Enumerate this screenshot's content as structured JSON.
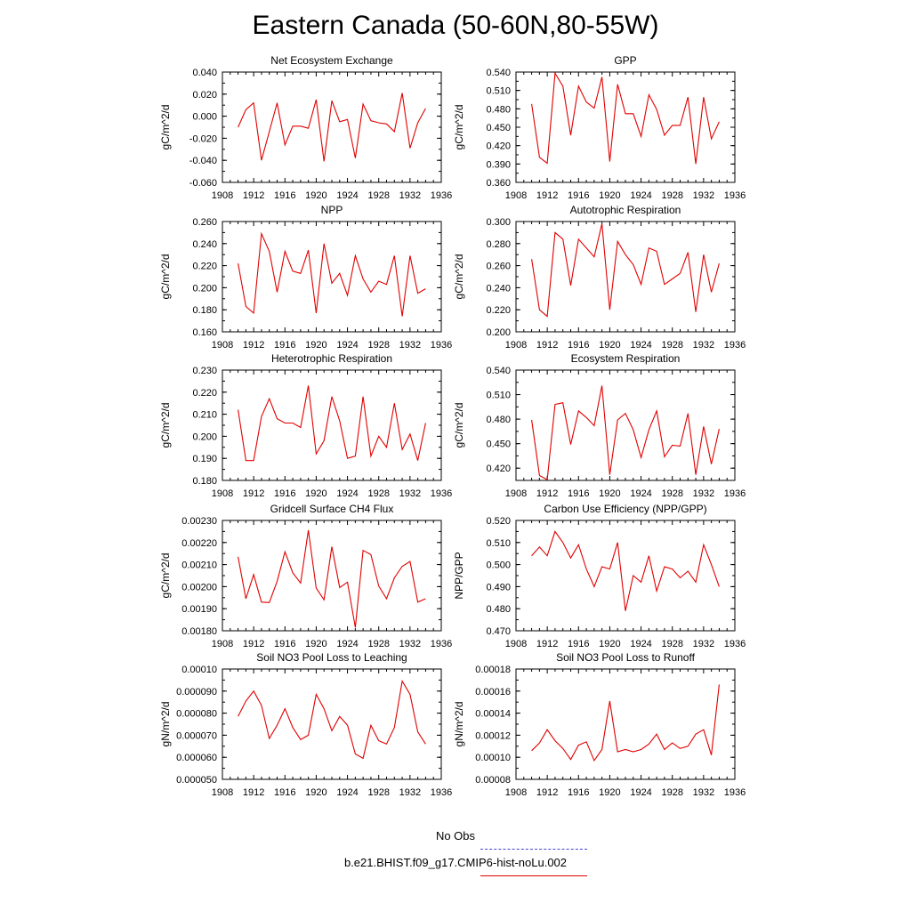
{
  "title": "Eastern Canada (50-60N,80-55W)",
  "legend": {
    "obs_label": "No Obs",
    "obs_color": "#4444cc",
    "model_label": "b.e21.BHIST.f09_g17.CMIP6-hist-noLu.002",
    "model_color": "#e00000"
  },
  "chart_data": [
    {
      "type": "line",
      "title": "Net Ecosystem Exchange",
      "ylabel": "gC/m^2/d",
      "xlim": [
        1908,
        1936
      ],
      "ylim": [
        -0.06,
        0.04
      ],
      "xticks": [
        "1908",
        "1912",
        "1916",
        "1920",
        "1924",
        "1928",
        "1932",
        "1936"
      ],
      "yticks": [
        "-0.060",
        "-0.040",
        "-0.020",
        "0.000",
        "0.020",
        "0.040"
      ],
      "series": [
        {
          "x": [
            1910,
            1911,
            1912,
            1913,
            1914,
            1915,
            1916,
            1917,
            1918,
            1919,
            1920,
            1921,
            1922,
            1923,
            1924,
            1925,
            1926,
            1927,
            1928,
            1929,
            1930,
            1931,
            1932,
            1933,
            1934
          ],
          "y": [
            -0.01,
            0.006,
            0.012,
            -0.04,
            -0.014,
            0.012,
            -0.026,
            -0.009,
            -0.009,
            -0.011,
            0.015,
            -0.041,
            0.014,
            -0.005,
            -0.003,
            -0.038,
            0.011,
            -0.004,
            -0.006,
            -0.007,
            -0.014,
            0.021,
            -0.029,
            -0.006,
            0.007
          ]
        }
      ]
    },
    {
      "type": "line",
      "title": "GPP",
      "ylabel": "gC/m^2/d",
      "xlim": [
        1908,
        1936
      ],
      "ylim": [
        0.36,
        0.54
      ],
      "xticks": [
        "1908",
        "1912",
        "1916",
        "1920",
        "1924",
        "1928",
        "1932",
        "1936"
      ],
      "yticks": [
        "0.360",
        "0.390",
        "0.420",
        "0.450",
        "0.480",
        "0.510",
        "0.540"
      ],
      "series": [
        {
          "x": [
            1910,
            1911,
            1912,
            1913,
            1914,
            1915,
            1916,
            1917,
            1918,
            1919,
            1920,
            1921,
            1922,
            1923,
            1924,
            1925,
            1926,
            1927,
            1928,
            1929,
            1930,
            1931,
            1932,
            1933,
            1934
          ],
          "y": [
            0.488,
            0.401,
            0.391,
            0.538,
            0.517,
            0.437,
            0.517,
            0.491,
            0.481,
            0.532,
            0.394,
            0.52,
            0.472,
            0.472,
            0.435,
            0.503,
            0.479,
            0.437,
            0.453,
            0.453,
            0.499,
            0.39,
            0.499,
            0.431,
            0.459
          ]
        }
      ]
    },
    {
      "type": "line",
      "title": "NPP",
      "ylabel": "gC/m^2/d",
      "xlim": [
        1908,
        1936
      ],
      "ylim": [
        0.16,
        0.26
      ],
      "xticks": [
        "1908",
        "1912",
        "1916",
        "1920",
        "1924",
        "1928",
        "1932",
        "1936"
      ],
      "yticks": [
        "0.160",
        "0.180",
        "0.200",
        "0.220",
        "0.240",
        "0.260"
      ],
      "series": [
        {
          "x": [
            1910,
            1911,
            1912,
            1913,
            1914,
            1915,
            1916,
            1917,
            1918,
            1919,
            1920,
            1921,
            1922,
            1923,
            1924,
            1925,
            1926,
            1927,
            1928,
            1929,
            1930,
            1931,
            1932,
            1933,
            1934
          ],
          "y": [
            0.222,
            0.183,
            0.177,
            0.249,
            0.233,
            0.196,
            0.233,
            0.215,
            0.213,
            0.234,
            0.177,
            0.24,
            0.204,
            0.213,
            0.193,
            0.229,
            0.208,
            0.196,
            0.206,
            0.203,
            0.229,
            0.174,
            0.229,
            0.195,
            0.199
          ]
        }
      ]
    },
    {
      "type": "line",
      "title": "Autotrophic Respiration",
      "ylabel": "gC/m^2/d",
      "xlim": [
        1908,
        1936
      ],
      "ylim": [
        0.2,
        0.3
      ],
      "xticks": [
        "1908",
        "1912",
        "1916",
        "1920",
        "1924",
        "1928",
        "1932",
        "1936"
      ],
      "yticks": [
        "0.200",
        "0.220",
        "0.240",
        "0.260",
        "0.280",
        "0.300"
      ],
      "series": [
        {
          "x": [
            1910,
            1911,
            1912,
            1913,
            1914,
            1915,
            1916,
            1917,
            1918,
            1919,
            1920,
            1921,
            1922,
            1923,
            1924,
            1925,
            1926,
            1927,
            1928,
            1929,
            1930,
            1931,
            1932,
            1933,
            1934
          ],
          "y": [
            0.266,
            0.22,
            0.214,
            0.29,
            0.284,
            0.242,
            0.284,
            0.276,
            0.268,
            0.298,
            0.22,
            0.282,
            0.27,
            0.261,
            0.243,
            0.276,
            0.273,
            0.243,
            0.248,
            0.253,
            0.272,
            0.218,
            0.27,
            0.236,
            0.262
          ]
        }
      ]
    },
    {
      "type": "line",
      "title": "Heterotrophic Respiration",
      "ylabel": "gC/m^2/d",
      "xlim": [
        1908,
        1936
      ],
      "ylim": [
        0.18,
        0.23
      ],
      "xticks": [
        "1908",
        "1912",
        "1916",
        "1920",
        "1924",
        "1928",
        "1932",
        "1936"
      ],
      "yticks": [
        "0.180",
        "0.190",
        "0.200",
        "0.210",
        "0.220",
        "0.230"
      ],
      "series": [
        {
          "x": [
            1910,
            1911,
            1912,
            1913,
            1914,
            1915,
            1916,
            1917,
            1918,
            1919,
            1920,
            1921,
            1922,
            1923,
            1924,
            1925,
            1926,
            1927,
            1928,
            1929,
            1930,
            1931,
            1932,
            1933,
            1934
          ],
          "y": [
            0.212,
            0.189,
            0.189,
            0.209,
            0.217,
            0.208,
            0.206,
            0.206,
            0.204,
            0.223,
            0.192,
            0.198,
            0.218,
            0.207,
            0.19,
            0.191,
            0.218,
            0.191,
            0.2,
            0.195,
            0.215,
            0.194,
            0.201,
            0.189,
            0.206
          ]
        }
      ]
    },
    {
      "type": "line",
      "title": "Ecosystem Respiration",
      "ylabel": "gC/m^2/d",
      "xlim": [
        1908,
        1936
      ],
      "ylim": [
        0.405,
        0.54
      ],
      "xticks": [
        "1908",
        "1912",
        "1916",
        "1920",
        "1924",
        "1928",
        "1932",
        "1936"
      ],
      "yticks": [
        "0.420",
        "0.450",
        "0.480",
        "0.510",
        "0.540"
      ],
      "series": [
        {
          "x": [
            1910,
            1911,
            1912,
            1913,
            1914,
            1915,
            1916,
            1917,
            1918,
            1919,
            1920,
            1921,
            1922,
            1923,
            1924,
            1925,
            1926,
            1927,
            1928,
            1929,
            1930,
            1931,
            1932,
            1933,
            1934
          ],
          "y": [
            0.479,
            0.411,
            0.406,
            0.498,
            0.5,
            0.449,
            0.49,
            0.482,
            0.472,
            0.521,
            0.412,
            0.479,
            0.487,
            0.467,
            0.433,
            0.467,
            0.49,
            0.434,
            0.448,
            0.447,
            0.487,
            0.412,
            0.471,
            0.425,
            0.468
          ]
        }
      ]
    },
    {
      "type": "line",
      "title": "Gridcell Surface CH4 Flux",
      "ylabel": "gC/m^2/d",
      "xlim": [
        1908,
        1936
      ],
      "ylim": [
        0.0018,
        0.0023
      ],
      "xticks": [
        "1908",
        "1912",
        "1916",
        "1920",
        "1924",
        "1928",
        "1932",
        "1936"
      ],
      "yticks": [
        "0.00180",
        "0.00190",
        "0.00200",
        "0.00210",
        "0.00220",
        "0.00230"
      ],
      "series": [
        {
          "x": [
            1910,
            1911,
            1912,
            1913,
            1914,
            1915,
            1916,
            1917,
            1918,
            1919,
            1920,
            1921,
            1922,
            1923,
            1924,
            1925,
            1926,
            1927,
            1928,
            1929,
            1930,
            1931,
            1932,
            1933,
            1934
          ],
          "y": [
            0.002135,
            0.001945,
            0.002055,
            0.00193,
            0.001928,
            0.002024,
            0.002158,
            0.002063,
            0.002016,
            0.002256,
            0.001994,
            0.00194,
            0.002181,
            0.001996,
            0.00202,
            0.001815,
            0.002164,
            0.002145,
            0.002003,
            0.001945,
            0.00204,
            0.002092,
            0.002114,
            0.00193,
            0.001945
          ]
        }
      ]
    },
    {
      "type": "line",
      "title": "Carbon Use Efficiency (NPP/GPP)",
      "ylabel": "NPP/GPP",
      "xlim": [
        1908,
        1936
      ],
      "ylim": [
        0.47,
        0.52
      ],
      "xticks": [
        "1908",
        "1912",
        "1916",
        "1920",
        "1924",
        "1928",
        "1932",
        "1936"
      ],
      "yticks": [
        "0.470",
        "0.480",
        "0.490",
        "0.500",
        "0.510",
        "0.520"
      ],
      "series": [
        {
          "x": [
            1910,
            1911,
            1912,
            1913,
            1914,
            1915,
            1916,
            1917,
            1918,
            1919,
            1920,
            1921,
            1922,
            1923,
            1924,
            1925,
            1926,
            1927,
            1928,
            1929,
            1930,
            1931,
            1932,
            1933,
            1934
          ],
          "y": [
            0.504,
            0.508,
            0.504,
            0.515,
            0.51,
            0.503,
            0.509,
            0.498,
            0.49,
            0.499,
            0.498,
            0.51,
            0.479,
            0.495,
            0.492,
            0.504,
            0.488,
            0.499,
            0.498,
            0.494,
            0.497,
            0.492,
            0.509,
            0.5,
            0.49
          ]
        }
      ]
    },
    {
      "type": "line",
      "title": "Soil NO3 Pool Loss to Leaching",
      "ylabel": "gN/m^2/d",
      "xlim": [
        1908,
        1936
      ],
      "ylim": [
        5e-05,
        0.0001
      ],
      "xticks": [
        "1908",
        "1912",
        "1916",
        "1920",
        "1924",
        "1928",
        "1932",
        "1936"
      ],
      "yticks": [
        "0.000050",
        "0.000060",
        "0.000070",
        "0.000080",
        "0.000090",
        "0.00010"
      ],
      "series": [
        {
          "x": [
            1910,
            1911,
            1912,
            1913,
            1914,
            1915,
            1916,
            1917,
            1918,
            1919,
            1920,
            1921,
            1922,
            1923,
            1924,
            1925,
            1926,
            1927,
            1928,
            1929,
            1930,
            1931,
            1932,
            1933,
            1934
          ],
          "y": [
            7.85e-05,
            8.55e-05,
            9e-05,
            8.35e-05,
            6.85e-05,
            7.45e-05,
            8.2e-05,
            7.35e-05,
            6.8e-05,
            7e-05,
            8.85e-05,
            8.2e-05,
            7.2e-05,
            7.85e-05,
            7.45e-05,
            6.15e-05,
            5.95e-05,
            7.45e-05,
            6.75e-05,
            6.6e-05,
            7.35e-05,
            9.45e-05,
            8.85e-05,
            7.15e-05,
            6.6e-05
          ]
        }
      ]
    },
    {
      "type": "line",
      "title": "Soil NO3 Pool Loss to Runoff",
      "ylabel": "gN/m^2/d",
      "xlim": [
        1908,
        1936
      ],
      "ylim": [
        8e-05,
        0.00018
      ],
      "xticks": [
        "1908",
        "1912",
        "1916",
        "1920",
        "1924",
        "1928",
        "1932",
        "1936"
      ],
      "yticks": [
        "0.00008",
        "0.00010",
        "0.00012",
        "0.00014",
        "0.00016",
        "0.00018"
      ],
      "series": [
        {
          "x": [
            1910,
            1911,
            1912,
            1913,
            1914,
            1915,
            1916,
            1917,
            1918,
            1919,
            1920,
            1921,
            1922,
            1923,
            1924,
            1925,
            1926,
            1927,
            1928,
            1929,
            1930,
            1931,
            1932,
            1933,
            1934
          ],
          "y": [
            0.000106,
            0.000113,
            0.000125,
            0.000115,
            0.000108,
            9.8e-05,
            0.000111,
            0.000114,
            9.7e-05,
            0.000107,
            0.000151,
            0.000105,
            0.000107,
            0.000105,
            0.000107,
            0.000112,
            0.000121,
            0.000107,
            0.000113,
            0.000108,
            0.00011,
            0.000121,
            0.000125,
            0.000102,
            0.000166
          ]
        }
      ]
    }
  ]
}
